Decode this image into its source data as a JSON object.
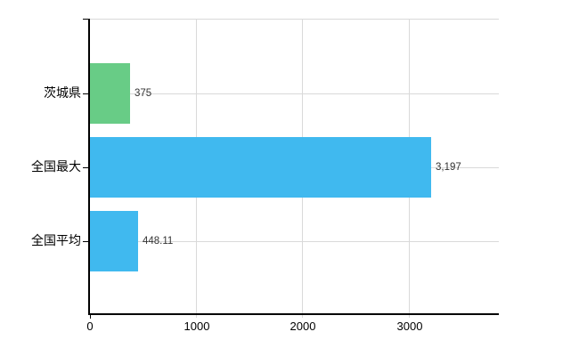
{
  "chart_data": {
    "type": "bar",
    "orientation": "horizontal",
    "title": "",
    "categories": [
      "茨城県",
      "全国最大",
      "全国平均"
    ],
    "values": [
      375,
      3197,
      448.11
    ],
    "value_labels": [
      "375",
      "3,197",
      "448.11"
    ],
    "bar_colors": [
      "#68cc86",
      "#40b9ef",
      "#40b9ef"
    ],
    "x_ticks": [
      0,
      1000,
      2000,
      3000
    ],
    "x_tick_labels": [
      "0",
      "1000",
      "2000",
      "3000"
    ],
    "xlim": [
      0,
      3842
    ],
    "grid": true,
    "legend": false,
    "gridline_color": "#d9d9d9",
    "axis_color": "#000000",
    "value_label_color": "#333333",
    "tick_label_color": "#000000"
  }
}
